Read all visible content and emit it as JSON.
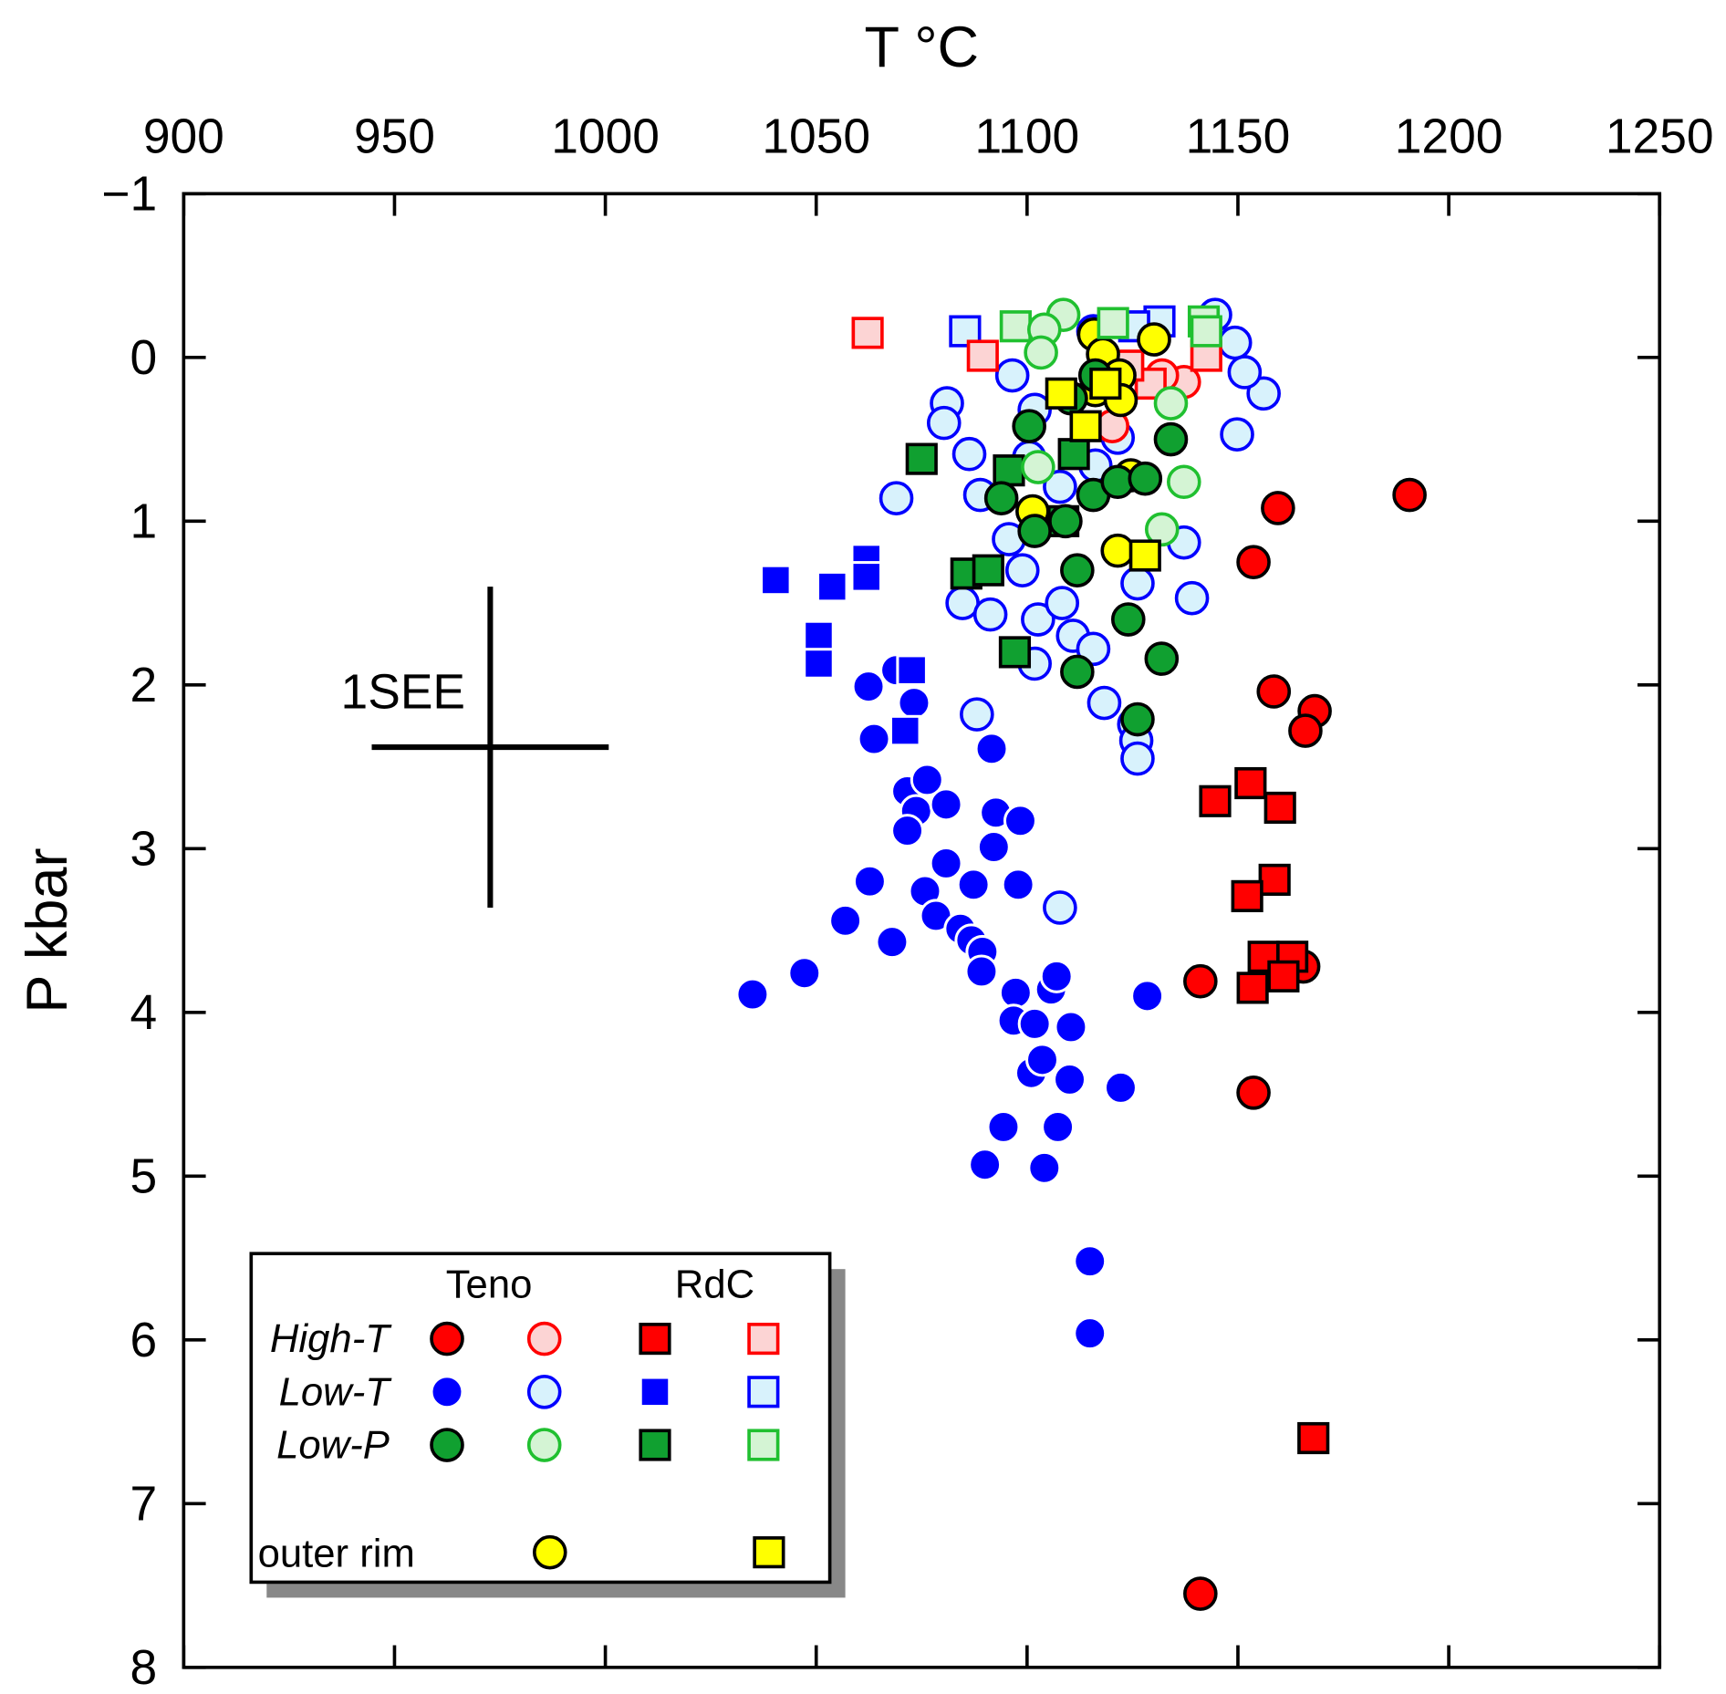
{
  "chart_data": {
    "type": "scatter",
    "title": "",
    "xlabel": "T °C",
    "ylabel": "P kbar",
    "xlim": [
      900,
      1250
    ],
    "ylim": [
      8,
      -1
    ],
    "x_ticks": [
      "900",
      "950",
      "1000",
      "1050",
      "1100",
      "1150",
      "1200",
      "1250"
    ],
    "y_ticks": [
      "−1",
      "0",
      "1",
      "2",
      "3",
      "4",
      "5",
      "6",
      "7",
      "8"
    ],
    "x_tick_values": [
      900,
      950,
      1000,
      1050,
      1100,
      1150,
      1200,
      1250
    ],
    "y_tick_values": [
      -1,
      0,
      1,
      2,
      3,
      4,
      5,
      6,
      7,
      8
    ],
    "x_axis_position": "top",
    "grid": false,
    "legend": {
      "placement": "bottom-left",
      "col_headers": [
        "Teno",
        "RdC"
      ],
      "row_labels": [
        "High-T",
        "Low-T",
        "Low-P",
        "outer rim"
      ]
    },
    "error_bar": {
      "label": "1SEE",
      "x": 972.7,
      "y": 2.38,
      "x_range": [
        944.6,
        1000.8
      ],
      "y_range": [
        1.4,
        3.36
      ]
    },
    "series": [
      {
        "name": "High-T Teno",
        "marker": "circle",
        "fill": "#ff0000",
        "stroke": "#000000",
        "points": [
          [
            1190.7,
            0.84
          ],
          [
            1159.5,
            0.92
          ],
          [
            1153.7,
            1.25
          ],
          [
            1158.5,
            2.04
          ],
          [
            1168.2,
            2.16
          ],
          [
            1166,
            2.28
          ],
          [
            1141.1,
            3.81
          ],
          [
            1165.5,
            3.72
          ],
          [
            1153.7,
            4.49
          ],
          [
            1141.1,
            7.55
          ]
        ]
      },
      {
        "name": "High-T Teno outer",
        "marker": "circle",
        "fill": "#fcd4d4",
        "stroke": "#ff0000",
        "points": [
          [
            1137.2,
            0.15
          ],
          [
            1120.2,
            0.42
          ],
          [
            1132,
            0.11
          ]
        ]
      },
      {
        "name": "High-T RdC",
        "marker": "square",
        "fill": "#ff0000",
        "stroke": "#000000",
        "points": [
          [
            1144.6,
            2.71
          ],
          [
            1153,
            2.6
          ],
          [
            1160,
            2.75
          ],
          [
            1158.7,
            3.19
          ],
          [
            1152.2,
            3.29
          ],
          [
            1156.1,
            3.66
          ],
          [
            1162.9,
            3.66
          ],
          [
            1153.5,
            3.85
          ],
          [
            1160.8,
            3.78
          ],
          [
            1167.9,
            6.6
          ]
        ]
      },
      {
        "name": "High-T RdC outer",
        "marker": "square",
        "fill": "#fcd4d4",
        "stroke": "#ff0000",
        "points": [
          [
            1062.2,
            -0.15
          ],
          [
            1089.5,
            -0.01
          ],
          [
            1142.5,
            -0.01
          ],
          [
            1129.3,
            0.16
          ],
          [
            1124,
            0.05
          ]
        ]
      },
      {
        "name": "Low-T Teno",
        "marker": "circle",
        "fill": "#0000ff",
        "stroke": "#ffffff",
        "points": [
          [
            1034.9,
            3.89
          ],
          [
            1047.2,
            3.76
          ],
          [
            1056.9,
            3.44
          ],
          [
            1062.7,
            3.2
          ],
          [
            1068,
            3.57
          ],
          [
            1062.4,
            2.01
          ],
          [
            1063.7,
            2.33
          ],
          [
            1069,
            1.91
          ],
          [
            1073.2,
            2.11
          ],
          [
            1071.6,
            2.65
          ],
          [
            1076.3,
            2.58
          ],
          [
            1073.7,
            2.77
          ],
          [
            1071.6,
            2.89
          ],
          [
            1080.8,
            2.73
          ],
          [
            1080.8,
            3.09
          ],
          [
            1075.8,
            3.26
          ],
          [
            1078.4,
            3.41
          ],
          [
            1084.2,
            3.49
          ],
          [
            1087.3,
            3.22
          ],
          [
            1086.8,
            3.56
          ],
          [
            1089.4,
            3.63
          ],
          [
            1089.2,
            3.75
          ],
          [
            1091.6,
            2.39
          ],
          [
            1092.1,
            2.99
          ],
          [
            1092.6,
            2.78
          ],
          [
            1098.4,
            2.83
          ],
          [
            1097.9,
            3.22
          ],
          [
            1097.3,
            3.88
          ],
          [
            1096.8,
            4.05
          ],
          [
            1101.8,
            4.07
          ],
          [
            1105.7,
            3.86
          ],
          [
            1107,
            3.78
          ],
          [
            1110.4,
            4.09
          ],
          [
            1101,
            4.37
          ],
          [
            1103.6,
            4.29
          ],
          [
            1110.1,
            4.41
          ],
          [
            1122.2,
            4.46
          ],
          [
            1128.5,
            3.9
          ],
          [
            1094.4,
            4.7
          ],
          [
            1107.3,
            4.7
          ],
          [
            1090,
            4.93
          ],
          [
            1104.1,
            4.95
          ],
          [
            1114.9,
            5.52
          ],
          [
            1114.9,
            5.96
          ]
        ]
      },
      {
        "name": "Low-T Teno outer",
        "marker": "circle",
        "fill": "#d8f2fc",
        "stroke": "#0000ff",
        "points": [
          [
            1069,
            0.86
          ],
          [
            1081,
            0.28
          ],
          [
            1080.3,
            0.4
          ],
          [
            1086.3,
            0.59
          ],
          [
            1088.9,
            0.84
          ],
          [
            1096.5,
            0.11
          ],
          [
            1101.8,
            0.32
          ],
          [
            1100.5,
            0.61
          ],
          [
            1107.8,
            0.79
          ],
          [
            1095.7,
            1.11
          ],
          [
            1098.9,
            1.3
          ],
          [
            1084.7,
            1.5
          ],
          [
            1091.3,
            1.57
          ],
          [
            1102.6,
            1.6
          ],
          [
            1108.3,
            1.5
          ],
          [
            1110.9,
            1.7
          ],
          [
            1115.7,
            1.78
          ],
          [
            1101.8,
            1.87
          ],
          [
            1118.3,
            2.11
          ],
          [
            1088.1,
            2.18
          ],
          [
            1125.4,
            2.24
          ],
          [
            1125.9,
            2.34
          ],
          [
            1126.2,
            2.45
          ],
          [
            1126.2,
            1.38
          ],
          [
            1139.1,
            1.47
          ],
          [
            1137.2,
            1.13
          ],
          [
            1116.2,
            0.66
          ],
          [
            1149.8,
            0.47
          ],
          [
            1156.1,
            0.22
          ],
          [
            1151.6,
            0.09
          ],
          [
            1149.3,
            -0.09
          ],
          [
            1144.6,
            -0.26
          ],
          [
            1115.7,
            -0.16
          ],
          [
            1121.5,
            0.49
          ],
          [
            1107.8,
            3.36
          ]
        ]
      },
      {
        "name": "Low-T RdC",
        "marker": "square",
        "fill": "#0000ff",
        "stroke": "#ffffff",
        "points": [
          [
            1040.4,
            1.36
          ],
          [
            1053.8,
            1.4
          ],
          [
            1061.9,
            1.23
          ],
          [
            1061.9,
            1.34
          ],
          [
            1050.6,
            1.7
          ],
          [
            1050.6,
            1.87
          ],
          [
            1072.7,
            1.91
          ],
          [
            1071.1,
            2.28
          ]
        ]
      },
      {
        "name": "Low-T RdC outer",
        "marker": "square",
        "fill": "#d8f2fc",
        "stroke": "#0000ff",
        "points": [
          [
            1085.3,
            -0.16
          ],
          [
            1131.4,
            -0.22
          ],
          [
            1125.4,
            -0.19
          ]
        ]
      },
      {
        "name": "Low-P Teno",
        "marker": "circle",
        "fill": "#10a030",
        "stroke": "#000000",
        "points": [
          [
            1100.5,
            0.42
          ],
          [
            1093.9,
            0.86
          ],
          [
            1101.8,
            1.06
          ],
          [
            1109.1,
            1
          ],
          [
            1115.7,
            0.84
          ],
          [
            1121.5,
            0.76
          ],
          [
            1128,
            0.74
          ],
          [
            1134.1,
            0.5
          ],
          [
            1111.9,
            1.3
          ],
          [
            1124,
            1.6
          ],
          [
            1131.9,
            1.84
          ],
          [
            1111.9,
            1.92
          ],
          [
            1126.2,
            2.21
          ],
          [
            1116.2,
            0.11
          ],
          [
            1110.4,
            0.25
          ]
        ]
      },
      {
        "name": "Low-P Teno outer",
        "marker": "circle",
        "fill": "#d4f4d4",
        "stroke": "#20c030",
        "points": [
          [
            1108.6,
            -0.26
          ],
          [
            1104.1,
            -0.17
          ],
          [
            1103.3,
            -0.03
          ],
          [
            1102.6,
            0.67
          ],
          [
            1137.2,
            0.76
          ],
          [
            1132,
            1.05
          ],
          [
            1134.1,
            0.28
          ]
        ]
      },
      {
        "name": "Low-P RdC",
        "marker": "square",
        "fill": "#10a030",
        "stroke": "#000000",
        "points": [
          [
            1075,
            0.62
          ],
          [
            1095.7,
            0.69
          ],
          [
            1108.6,
            1
          ],
          [
            1111.1,
            0.59
          ],
          [
            1085.6,
            1.32
          ],
          [
            1090.8,
            1.3
          ],
          [
            1097.1,
            1.8
          ]
        ]
      },
      {
        "name": "Low-P RdC outer",
        "marker": "square",
        "fill": "#d4f4d4",
        "stroke": "#20c030",
        "points": [
          [
            1097.3,
            -0.19
          ],
          [
            1120.4,
            -0.21
          ],
          [
            1141.9,
            -0.22
          ],
          [
            1142.5,
            -0.16
          ]
        ]
      },
      {
        "name": "outer rim Teno",
        "marker": "circle",
        "fill": "#ffff00",
        "stroke": "#000000",
        "points": [
          [
            1115.9,
            -0.14
          ],
          [
            1130.1,
            -0.11
          ],
          [
            1118,
            -0.02
          ],
          [
            1121.9,
            0.11
          ],
          [
            1116.2,
            0.2
          ],
          [
            1122.2,
            0.26
          ],
          [
            1124.6,
            0.72
          ],
          [
            1101.3,
            0.94
          ],
          [
            1121.5,
            1.18
          ]
        ]
      },
      {
        "name": "outer rim RdC",
        "marker": "square",
        "fill": "#ffff00",
        "stroke": "#000000",
        "points": [
          [
            1108.1,
            0.22
          ],
          [
            1118.6,
            0.16
          ],
          [
            1113.9,
            0.42
          ],
          [
            1128,
            1.21
          ]
        ]
      }
    ]
  }
}
